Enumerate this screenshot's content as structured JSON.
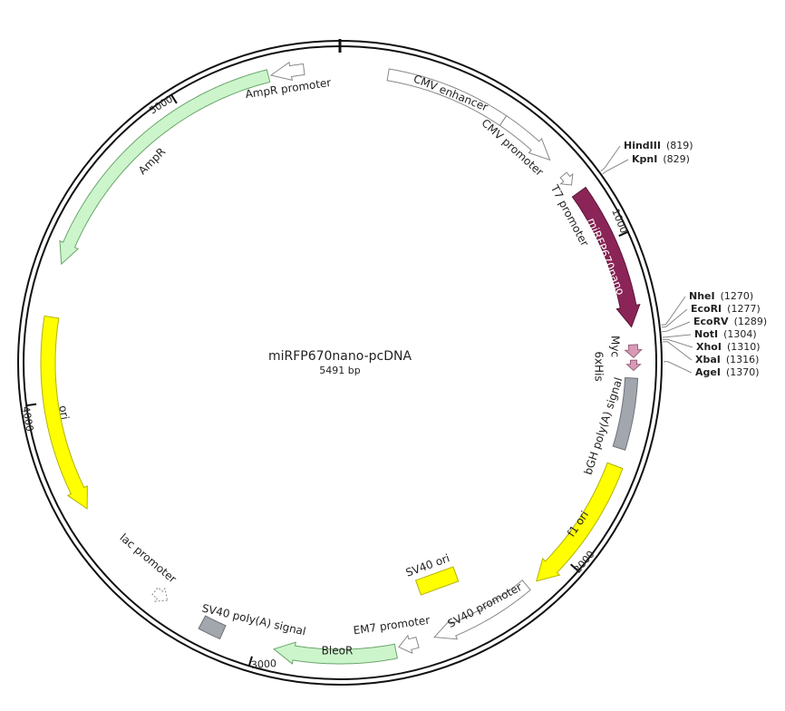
{
  "title": "miRFP670nano-pcDNA",
  "length": {
    "value": 5491,
    "unit": "bp"
  },
  "ticks": [
    1000,
    2000,
    3000,
    4000,
    5000
  ],
  "features": [
    {
      "label": "CMV enhancer"
    },
    {
      "label": "CMV promoter"
    },
    {
      "label": "T7 promoter"
    },
    {
      "label": "miRFP670nano"
    },
    {
      "label": "Myc"
    },
    {
      "label": "6xHis"
    },
    {
      "label": "bGH poly(A) signal"
    },
    {
      "label": "f1 ori"
    },
    {
      "label": "SV40 promoter"
    },
    {
      "label": "EM7 promoter"
    },
    {
      "label": "BleoR"
    },
    {
      "label": "SV40 poly(A) signal"
    },
    {
      "label": "lac promoter"
    },
    {
      "label": "SV40 ori"
    },
    {
      "label": "ori"
    },
    {
      "label": "AmpR"
    },
    {
      "label": "AmpR promoter"
    }
  ],
  "sites": [
    {
      "name": "HindIII",
      "position": "(819)"
    },
    {
      "name": "KpnI",
      "position": "(829)"
    },
    {
      "name": "NheI",
      "position": "(1270)"
    },
    {
      "name": "EcoRI",
      "position": "(1277)"
    },
    {
      "name": "EcoRV",
      "position": "(1289)"
    },
    {
      "name": "NotI",
      "position": "(1304)"
    },
    {
      "name": "XhoI",
      "position": "(1310)"
    },
    {
      "name": "XbaI",
      "position": "(1316)"
    },
    {
      "name": "AgeI",
      "position": "(1370)"
    }
  ]
}
